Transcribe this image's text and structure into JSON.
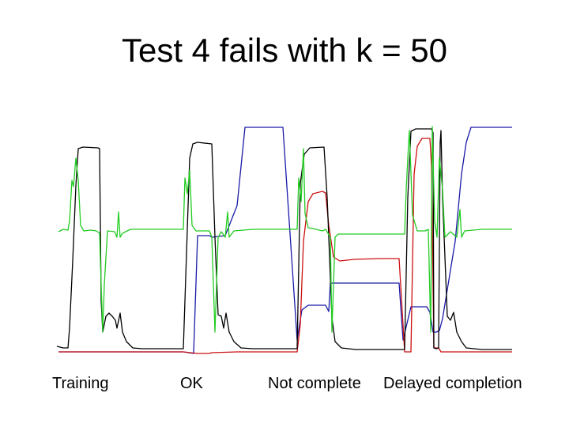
{
  "slide": {
    "title": "Test 4 fails with k = 50"
  },
  "chart_data": {
    "type": "line",
    "title": "Test 4 fails with k = 50",
    "xlabel": "",
    "ylabel": "",
    "grid": false,
    "axes_visible": false,
    "segment_labels": [
      "Training",
      "OK",
      "Not complete",
      "Delayed completion"
    ],
    "colors": {
      "green": "#22cc22",
      "black": "#000000",
      "red": "#cc1111",
      "blue": "#1a1aa8"
    },
    "series": [
      {
        "color": "green",
        "points": [
          [
            74,
            293
          ],
          [
            80,
            290
          ],
          [
            86,
            291
          ],
          [
            88,
            280
          ],
          [
            91,
            228
          ],
          [
            93,
            236
          ],
          [
            96,
            200
          ],
          [
            99,
            228
          ],
          [
            102,
            285
          ],
          [
            106,
            292
          ],
          [
            115,
            291
          ],
          [
            122,
            292
          ],
          [
            126,
            295
          ],
          [
            128,
            360
          ],
          [
            130,
            420
          ],
          [
            132,
            360
          ],
          [
            136,
            292
          ],
          [
            145,
            293
          ],
          [
            148,
            300
          ],
          [
            150,
            268
          ],
          [
            152,
            300
          ],
          [
            155,
            295
          ],
          [
            165,
            290
          ],
          [
            200,
            290
          ],
          [
            232,
            290
          ],
          [
            234,
            225
          ],
          [
            237,
            245
          ],
          [
            240,
            215
          ],
          [
            243,
            285
          ],
          [
            248,
            292
          ],
          [
            265,
            292
          ],
          [
            268,
            300
          ],
          [
            272,
            420
          ],
          [
            276,
            300
          ],
          [
            280,
            293
          ],
          [
            285,
            300
          ],
          [
            288,
            268
          ],
          [
            290,
            300
          ],
          [
            296,
            292
          ],
          [
            320,
            290
          ],
          [
            376,
            290
          ],
          [
            378,
            225
          ],
          [
            381,
            255
          ],
          [
            384,
            188
          ],
          [
            386,
            270
          ],
          [
            390,
            288
          ],
          [
            400,
            290
          ],
          [
            408,
            292
          ],
          [
            412,
            290
          ],
          [
            418,
            300
          ],
          [
            420,
            420
          ],
          [
            424,
            300
          ],
          [
            428,
            296
          ],
          [
            460,
            296
          ],
          [
            505,
            296
          ],
          [
            512,
            296
          ],
          [
            514,
            240
          ],
          [
            516,
            200
          ],
          [
            518,
            165
          ],
          [
            522,
            272
          ],
          [
            528,
            292
          ],
          [
            538,
            292
          ],
          [
            542,
            290
          ],
          [
            545,
            420
          ],
          [
            547,
            160
          ],
          [
            550,
            280
          ],
          [
            553,
            300
          ],
          [
            556,
            200
          ],
          [
            560,
            240
          ],
          [
            563,
            300
          ],
          [
            570,
            293
          ],
          [
            578,
            300
          ],
          [
            582,
            265
          ],
          [
            584,
            300
          ],
          [
            588,
            292
          ],
          [
            610,
            290
          ],
          [
            648,
            290
          ]
        ]
      },
      {
        "color": "black",
        "points": [
          [
            72,
            438
          ],
          [
            80,
            440
          ],
          [
            86,
            440
          ],
          [
            88,
            415
          ],
          [
            92,
            330
          ],
          [
            96,
            235
          ],
          [
            99,
            188
          ],
          [
            105,
            186
          ],
          [
            124,
            187
          ],
          [
            126,
            188
          ],
          [
            128,
            380
          ],
          [
            130,
            420
          ],
          [
            134,
            400
          ],
          [
            138,
            396
          ],
          [
            142,
            400
          ],
          [
            146,
            405
          ],
          [
            148,
            415
          ],
          [
            152,
            396
          ],
          [
            155,
            420
          ],
          [
            160,
            432
          ],
          [
            168,
            440
          ],
          [
            180,
            441
          ],
          [
            232,
            441
          ],
          [
            240,
            200
          ],
          [
            244,
            182
          ],
          [
            250,
            180
          ],
          [
            268,
            182
          ],
          [
            272,
            300
          ],
          [
            276,
            398
          ],
          [
            280,
            400
          ],
          [
            283,
            415
          ],
          [
            286,
            396
          ],
          [
            290,
            420
          ],
          [
            296,
            432
          ],
          [
            305,
            440
          ],
          [
            320,
            441
          ],
          [
            376,
            441
          ],
          [
            380,
            232
          ],
          [
            385,
            195
          ],
          [
            392,
            187
          ],
          [
            410,
            186
          ],
          [
            414,
            250
          ],
          [
            418,
            350
          ],
          [
            420,
            402
          ],
          [
            424,
            432
          ],
          [
            432,
            440
          ],
          [
            450,
            442
          ],
          [
            505,
            442
          ],
          [
            512,
            442
          ],
          [
            516,
            250
          ],
          [
            520,
            166
          ],
          [
            526,
            163
          ],
          [
            546,
            163
          ],
          [
            548,
            168
          ],
          [
            549,
            440
          ],
          [
            552,
            441
          ],
          [
            555,
            440
          ],
          [
            557,
            180
          ],
          [
            558,
            165
          ],
          [
            560,
            250
          ],
          [
            562,
            300
          ],
          [
            566,
            400
          ],
          [
            570,
            405
          ],
          [
            574,
            395
          ],
          [
            578,
            420
          ],
          [
            584,
            432
          ],
          [
            590,
            440
          ],
          [
            610,
            442
          ],
          [
            648,
            442
          ]
        ]
      },
      {
        "color": "red",
        "points": [
          [
            74,
            445
          ],
          [
            232,
            445
          ],
          [
            250,
            447
          ],
          [
            265,
            447
          ],
          [
            268,
            446
          ],
          [
            300,
            445
          ],
          [
            370,
            445
          ],
          [
            376,
            445
          ],
          [
            380,
            410
          ],
          [
            384,
            305
          ],
          [
            390,
            255
          ],
          [
            396,
            245
          ],
          [
            408,
            242
          ],
          [
            412,
            244
          ],
          [
            416,
            285
          ],
          [
            422,
            325
          ],
          [
            430,
            330
          ],
          [
            448,
            328
          ],
          [
            480,
            327
          ],
          [
            505,
            327
          ],
          [
            512,
            445
          ],
          [
            520,
            445
          ],
          [
            524,
            220
          ],
          [
            528,
            185
          ],
          [
            534,
            175
          ],
          [
            544,
            175
          ],
          [
            546,
            210
          ],
          [
            549,
            440
          ],
          [
            552,
            440
          ],
          [
            555,
            440
          ],
          [
            558,
            445
          ],
          [
            562,
            445
          ],
          [
            568,
            445
          ],
          [
            648,
            445
          ]
        ]
      },
      {
        "color": "blue",
        "points": [
          [
            74,
            445
          ],
          [
            232,
            445
          ],
          [
            245,
            447
          ],
          [
            250,
            298
          ],
          [
            265,
            298
          ],
          [
            268,
            300
          ],
          [
            285,
            298
          ],
          [
            300,
            260
          ],
          [
            310,
            161
          ],
          [
            358,
            161
          ],
          [
            376,
            430
          ],
          [
            382,
            392
          ],
          [
            390,
            386
          ],
          [
            412,
            386
          ],
          [
            416,
            394
          ],
          [
            418,
            358
          ],
          [
            430,
            358
          ],
          [
            505,
            358
          ],
          [
            510,
            430
          ],
          [
            520,
            388
          ],
          [
            540,
            388
          ],
          [
            544,
            395
          ],
          [
            548,
            420
          ],
          [
            552,
            420
          ],
          [
            556,
            418
          ],
          [
            560,
            403
          ],
          [
            576,
            305
          ],
          [
            584,
            220
          ],
          [
            590,
            180
          ],
          [
            596,
            161
          ],
          [
            648,
            161
          ]
        ]
      }
    ]
  }
}
